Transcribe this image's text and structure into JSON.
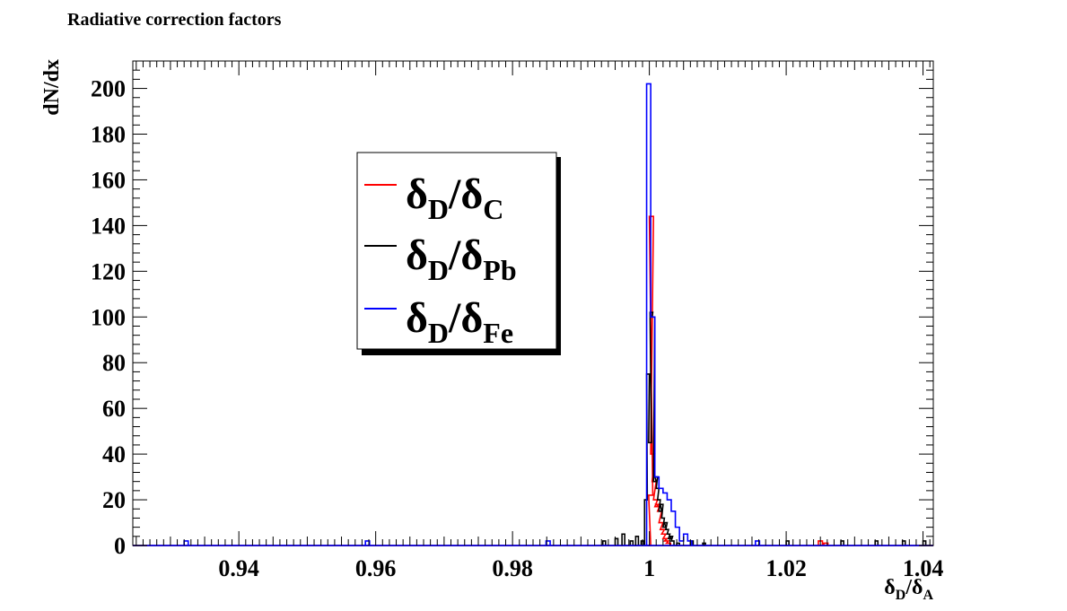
{
  "chart_data": {
    "type": "histogram",
    "title": "Radiative correction factors",
    "xlabel": {
      "base": "δ",
      "sub1": "D",
      "slash": "/δ",
      "sub2": "A"
    },
    "ylabel": "dN/dx",
    "xlim": [
      0.9245,
      1.0415
    ],
    "ylim": [
      0,
      212
    ],
    "x_ticks": [
      {
        "value": 0.94,
        "label": "0.94"
      },
      {
        "value": 0.96,
        "label": "0.96"
      },
      {
        "value": 0.98,
        "label": "0.98"
      },
      {
        "value": 1.0,
        "label": "1"
      },
      {
        "value": 1.02,
        "label": "1.02"
      },
      {
        "value": 1.04,
        "label": "1.04"
      }
    ],
    "y_ticks": [
      {
        "value": 0,
        "label": "0"
      },
      {
        "value": 20,
        "label": "20"
      },
      {
        "value": 40,
        "label": "40"
      },
      {
        "value": 60,
        "label": "60"
      },
      {
        "value": 80,
        "label": "80"
      },
      {
        "value": 100,
        "label": "100"
      },
      {
        "value": 120,
        "label": "120"
      },
      {
        "value": 140,
        "label": "140"
      },
      {
        "value": 160,
        "label": "160"
      },
      {
        "value": 180,
        "label": "180"
      },
      {
        "value": 200,
        "label": "200"
      }
    ],
    "grid": false,
    "legend_position": "upper-left",
    "series": [
      {
        "name": "δD/δC",
        "legend": {
          "base": "δ",
          "sub1": "D",
          "slash": "/δ",
          "sub2": "C"
        },
        "color": "#ff0000",
        "bin_width": 0.0006,
        "bins": [
          [
            0.9996,
            0
          ],
          [
            0.9999,
            22
          ],
          [
            1.0,
            144
          ],
          [
            1.0002,
            40
          ],
          [
            1.0004,
            28
          ],
          [
            1.0006,
            20
          ],
          [
            1.0008,
            17
          ],
          [
            1.001,
            18
          ],
          [
            1.0012,
            15
          ],
          [
            1.0014,
            10
          ],
          [
            1.0016,
            7
          ],
          [
            1.0018,
            5
          ],
          [
            1.002,
            3
          ],
          [
            1.0022,
            2
          ],
          [
            1.0025,
            1
          ],
          [
            1.0247,
            2
          ],
          [
            1.0255,
            1
          ]
        ]
      },
      {
        "name": "δD/δPb",
        "legend": {
          "base": "δ",
          "sub1": "D",
          "slash": "/δ",
          "sub2": "Pb"
        },
        "color": "#000000",
        "bin_width": 0.0004,
        "bins": [
          [
            0.9932,
            2
          ],
          [
            0.995,
            3
          ],
          [
            0.996,
            5
          ],
          [
            0.9972,
            2
          ],
          [
            0.998,
            4
          ],
          [
            0.9988,
            2
          ],
          [
            0.9993,
            20
          ],
          [
            0.9996,
            75
          ],
          [
            0.9999,
            45
          ],
          [
            1.0001,
            102
          ],
          [
            1.0004,
            100
          ],
          [
            1.0006,
            28
          ],
          [
            1.0008,
            30
          ],
          [
            1.001,
            25
          ],
          [
            1.0012,
            20
          ],
          [
            1.0014,
            15
          ],
          [
            1.0016,
            18
          ],
          [
            1.0018,
            12
          ],
          [
            1.002,
            8
          ],
          [
            1.0022,
            10
          ],
          [
            1.0024,
            7
          ],
          [
            1.0026,
            5
          ],
          [
            1.0028,
            3
          ],
          [
            1.003,
            4
          ],
          [
            1.0032,
            2
          ],
          [
            1.004,
            1
          ],
          [
            1.006,
            2
          ],
          [
            1.0078,
            1
          ],
          [
            1.02,
            2
          ],
          [
            1.028,
            2
          ],
          [
            1.033,
            2
          ],
          [
            1.037,
            2
          ],
          [
            1.04,
            2
          ]
        ]
      },
      {
        "name": "δD/δFe",
        "legend": {
          "base": "δ",
          "sub1": "D",
          "slash": "/δ",
          "sub2": "Fe"
        },
        "color": "#0000ff",
        "bin_width": 0.0006,
        "bins": [
          [
            0.932,
            2
          ],
          [
            0.9585,
            2
          ],
          [
            0.9849,
            2
          ],
          [
            0.9996,
            202
          ],
          [
            1.0002,
            100
          ],
          [
            1.0008,
            30
          ],
          [
            1.0014,
            25
          ],
          [
            1.002,
            23
          ],
          [
            1.0026,
            20
          ],
          [
            1.0032,
            15
          ],
          [
            1.0038,
            8
          ],
          [
            1.0044,
            2
          ],
          [
            1.005,
            5
          ],
          [
            1.0056,
            2
          ],
          [
            1.0155,
            2
          ]
        ]
      }
    ]
  }
}
